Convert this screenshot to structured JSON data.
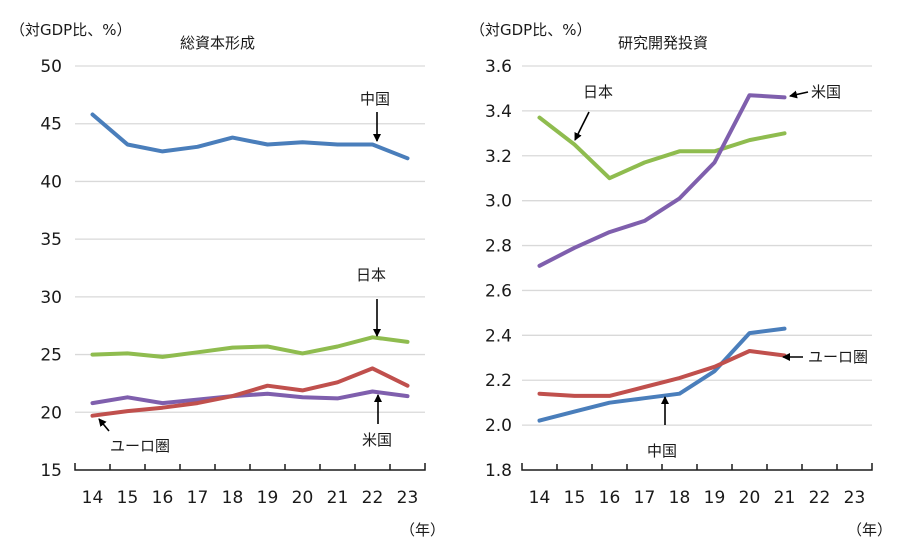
{
  "chart_data": [
    {
      "type": "line",
      "title": "総資本形成",
      "ylabel": "（対GDP比、%）",
      "xlabel": "（年）",
      "categories": [
        "14",
        "15",
        "16",
        "17",
        "18",
        "19",
        "20",
        "21",
        "22",
        "23"
      ],
      "ylim": [
        15,
        50
      ],
      "yticks": [
        15,
        20,
        25,
        30,
        35,
        40,
        45,
        50
      ],
      "grid": true,
      "series": [
        {
          "name": "中国",
          "color": "#4a7ebb",
          "values": [
            45.8,
            43.2,
            42.6,
            43.0,
            43.8,
            43.2,
            43.4,
            43.2,
            43.2,
            42.0
          ]
        },
        {
          "name": "日本",
          "color": "#8fbc4f",
          "values": [
            25.0,
            25.1,
            24.8,
            25.2,
            25.6,
            25.7,
            25.1,
            25.7,
            26.5,
            26.1
          ]
        },
        {
          "name": "米国",
          "color": "#7f5fad",
          "values": [
            20.8,
            21.3,
            20.8,
            21.1,
            21.4,
            21.6,
            21.3,
            21.2,
            21.8,
            21.4
          ]
        },
        {
          "name": "ユーロ圏",
          "color": "#c0504d",
          "values": [
            19.7,
            20.1,
            20.4,
            20.8,
            21.4,
            22.3,
            21.9,
            22.6,
            23.8,
            22.3
          ]
        }
      ],
      "annotations": [
        {
          "text": "中国",
          "series": "中国",
          "at": "22",
          "arrow": "down"
        },
        {
          "text": "日本",
          "series": "日本",
          "at": "22",
          "arrow": "down"
        },
        {
          "text": "米国",
          "series": "米国",
          "at": "22",
          "arrow": "up"
        },
        {
          "text": "ユーロ圏",
          "series": "ユーロ圏",
          "at": "14",
          "arrow": "up-left"
        }
      ]
    },
    {
      "type": "line",
      "title": "研究開発投資",
      "ylabel": "（対GDP比、%）",
      "xlabel": "（年）",
      "categories": [
        "14",
        "15",
        "16",
        "17",
        "18",
        "19",
        "20",
        "21",
        "22",
        "23"
      ],
      "ylim": [
        1.8,
        3.6
      ],
      "yticks": [
        "1.8",
        "2.0",
        "2.2",
        "2.4",
        "2.6",
        "2.8",
        "3.0",
        "3.2",
        "3.4",
        "3.6"
      ],
      "grid": true,
      "series": [
        {
          "name": "日本",
          "color": "#8fbc4f",
          "values": [
            3.37,
            3.25,
            3.1,
            3.17,
            3.22,
            3.22,
            3.27,
            3.3,
            null,
            null
          ]
        },
        {
          "name": "米国",
          "color": "#7f5fad",
          "values": [
            2.71,
            2.79,
            2.86,
            2.91,
            3.01,
            3.17,
            3.47,
            3.46,
            null,
            null
          ]
        },
        {
          "name": "中国",
          "color": "#4a7ebb",
          "values": [
            2.02,
            2.06,
            2.1,
            2.12,
            2.14,
            2.24,
            2.41,
            2.43,
            null,
            null
          ]
        },
        {
          "name": "ユーロ圏",
          "color": "#c0504d",
          "values": [
            2.14,
            2.13,
            2.13,
            2.17,
            2.21,
            2.26,
            2.33,
            2.31,
            null,
            null
          ]
        }
      ],
      "annotations": [
        {
          "text": "日本",
          "series": "日本",
          "at": "15",
          "arrow": "down-left"
        },
        {
          "text": "米国",
          "series": "米国",
          "at": "21",
          "arrow": "left"
        },
        {
          "text": "中国",
          "series": "中国",
          "at": "17.5",
          "arrow": "up"
        },
        {
          "text": "ユーロ圏",
          "series": "ユーロ圏",
          "at": "21",
          "arrow": "left"
        }
      ]
    }
  ]
}
